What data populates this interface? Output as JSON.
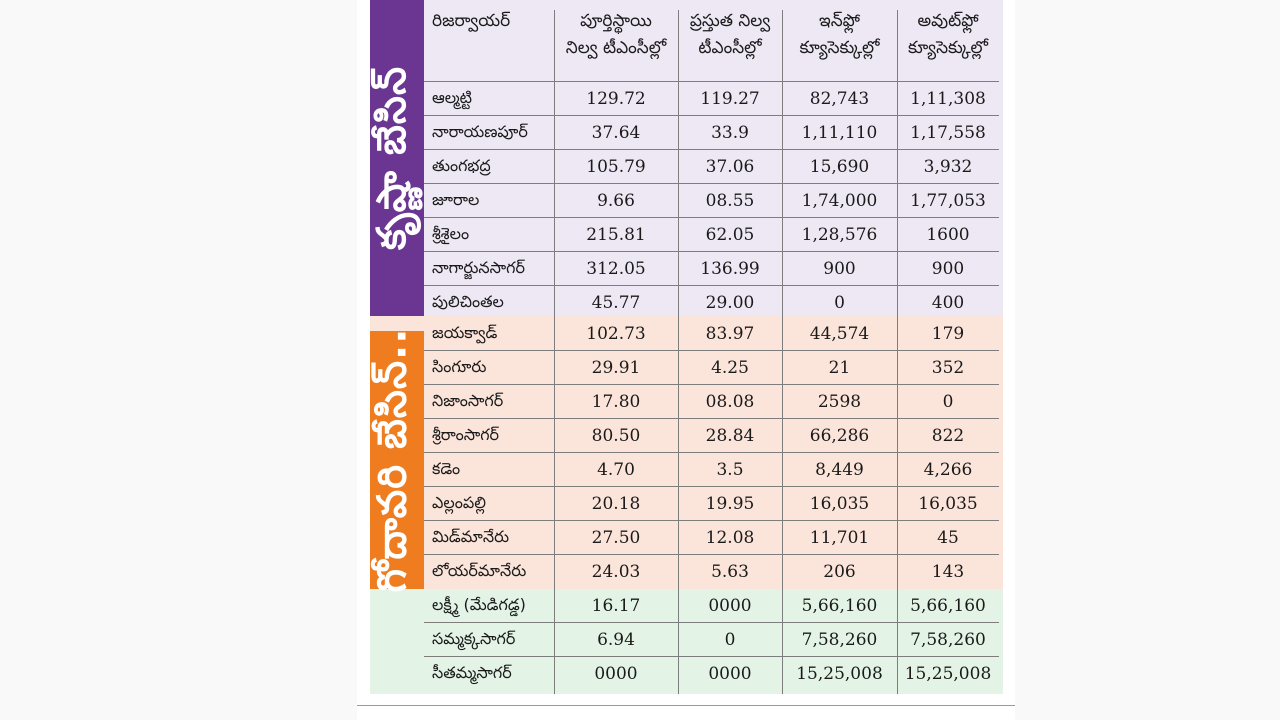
{
  "headers": [
    "రిజర్వాయర్",
    "పూర్తిస్థాయి నిల్వ టీఎంసీల్లో",
    "ప్రస్తుత నిల్వ టీఎంసీల్లో",
    "ఇన్‌ఫ్లో క్యూసెక్కుల్లో",
    "అవుట్‌ఫ్లో క్యూసెక్కుల్లో"
  ],
  "header_lines": [
    [
      "రిజర్వాయర్"
    ],
    [
      "పూర్తిస్థాయి",
      "నిల్వ టీఎంసీల్లో"
    ],
    [
      "ప్రస్తుత నిల్వ",
      "టీఎంసీల్లో"
    ],
    [
      "ఇన్‌ఫ్లో",
      "క్యూసెక్కుల్లో"
    ],
    [
      "అవుట్‌ఫ్లో",
      "క్యూసెక్కుల్లో"
    ]
  ],
  "basins": {
    "krishna": "కృష్ణా బేసిన్",
    "godavari": "గోదావరి బేసిన్.."
  },
  "colors": {
    "krishna_band": "#6b3592",
    "godavari_band": "#ef7d20",
    "krishna_bg": "#ede8f4",
    "godavari_bg": "#fbe4da",
    "other_bg": "#e3f4e7"
  },
  "rows": [
    {
      "name": "ఆల్మట్టి",
      "full": "129.72",
      "current": "119.27",
      "inflow": "82,743",
      "outflow": "1,11,308",
      "basin": "krishna"
    },
    {
      "name": "నారాయణపూర్",
      "full": "37.64",
      "current": "33.9",
      "inflow": "1,11,110",
      "outflow": "1,17,558",
      "basin": "krishna"
    },
    {
      "name": "తుంగభద్ర",
      "full": "105.79",
      "current": "37.06",
      "inflow": "15,690",
      "outflow": "3,932",
      "basin": "krishna"
    },
    {
      "name": "జూరాల",
      "full": "9.66",
      "current": "08.55",
      "inflow": "1,74,000",
      "outflow": "1,77,053",
      "basin": "krishna"
    },
    {
      "name": "శ్రీశైలం",
      "full": "215.81",
      "current": "62.05",
      "inflow": "1,28,576",
      "outflow": "1600",
      "basin": "krishna"
    },
    {
      "name": "నాగార్జునసాగర్",
      "full": "312.05",
      "current": "136.99",
      "inflow": "900",
      "outflow": "900",
      "basin": "krishna"
    },
    {
      "name": "పులిచింతల",
      "full": "45.77",
      "current": "29.00",
      "inflow": "0",
      "outflow": "400",
      "basin": "krishna"
    },
    {
      "name": "జయక్వాడ్",
      "full": "102.73",
      "current": "83.97",
      "inflow": "44,574",
      "outflow": "179",
      "basin": "godavari"
    },
    {
      "name": "సింగూరు",
      "full": "29.91",
      "current": "4.25",
      "inflow": "21",
      "outflow": "352",
      "basin": "godavari"
    },
    {
      "name": "నిజాంసాగర్",
      "full": "17.80",
      "current": "08.08",
      "inflow": "2598",
      "outflow": "0",
      "basin": "godavari"
    },
    {
      "name": "శ్రీరాంసాగర్",
      "full": "80.50",
      "current": "28.84",
      "inflow": "66,286",
      "outflow": "822",
      "basin": "godavari"
    },
    {
      "name": "కడెం",
      "full": "4.70",
      "current": "3.5",
      "inflow": "8,449",
      "outflow": "4,266",
      "basin": "godavari"
    },
    {
      "name": "ఎల్లంపల్లి",
      "full": "20.18",
      "current": "19.95",
      "inflow": "16,035",
      "outflow": "16,035",
      "basin": "godavari"
    },
    {
      "name": "మిడ్‌మానేరు",
      "full": "27.50",
      "current": "12.08",
      "inflow": "11,701",
      "outflow": "45",
      "basin": "godavari"
    },
    {
      "name": "లోయర్‌మానేరు",
      "full": "24.03",
      "current": "5.63",
      "inflow": "206",
      "outflow": "143",
      "basin": "godavari"
    },
    {
      "name": "లక్ష్మీ (మేడిగడ్డ)",
      "full": "16.17",
      "current": "0000",
      "inflow": "5,66,160",
      "outflow": "5,66,160",
      "basin": "other"
    },
    {
      "name": "సమ్మక్కసాగర్",
      "full": "6.94",
      "current": "0",
      "inflow": "7,58,260",
      "outflow": "7,58,260",
      "basin": "other"
    },
    {
      "name": "సీతమ్మసాగర్",
      "full": "0000",
      "current": "0000",
      "inflow": "15,25,008",
      "outflow": "15,25,008",
      "basin": "other"
    }
  ]
}
